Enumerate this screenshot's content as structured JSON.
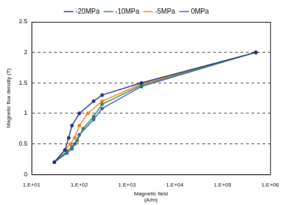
{
  "chart_data": {
    "type": "line",
    "x_label": [
      "Magnetic field",
      "(A/m)"
    ],
    "y_label": "Magnetic flux density (T)",
    "log": "x",
    "grid": "y",
    "legend": "top",
    "marker": "circle",
    "xlim": [
      10,
      1000000
    ],
    "xticks": [
      {
        "value": 10,
        "label": "1.E+01"
      },
      {
        "value": 100,
        "label": "1.E+02"
      },
      {
        "value": 1000,
        "label": "1.E+03"
      },
      {
        "value": 10000,
        "label": "1.E+04"
      },
      {
        "value": 100000,
        "label": "1.E+05"
      },
      {
        "value": 1000000,
        "label": "1.E+06"
      }
    ],
    "ylim": [
      0,
      2.5
    ],
    "yticks": [
      0,
      0.5,
      1,
      1.5,
      2,
      2.5
    ],
    "series": [
      {
        "name": "-20MPa",
        "color": "#1f2a80",
        "x": [
          30,
          50,
          60,
          70,
          100,
          200,
          300,
          2000,
          500000
        ],
        "values": [
          0.2,
          0.4,
          0.6,
          0.8,
          1.0,
          1.2,
          1.3,
          1.5,
          2.0
        ]
      },
      {
        "name": "-10MPa",
        "color": "#2e8b3a",
        "x": [
          30,
          55,
          70,
          90,
          120,
          200,
          300,
          2000,
          500000
        ],
        "values": [
          0.2,
          0.38,
          0.45,
          0.55,
          0.75,
          0.95,
          1.15,
          1.46,
          2.0
        ]
      },
      {
        "name": "-5MPa",
        "color": "#f07c20",
        "x": [
          30,
          50,
          65,
          80,
          100,
          150,
          300,
          2000,
          500000
        ],
        "values": [
          0.2,
          0.4,
          0.5,
          0.6,
          0.8,
          1.0,
          1.2,
          1.48,
          2.0
        ]
      },
      {
        "name": "0MPa",
        "color": "#3a4fd0",
        "x": [
          30,
          55,
          70,
          80,
          100,
          200,
          300,
          2000,
          500000
        ],
        "values": [
          0.2,
          0.35,
          0.42,
          0.5,
          0.65,
          0.9,
          1.08,
          1.44,
          2.0
        ]
      }
    ]
  }
}
